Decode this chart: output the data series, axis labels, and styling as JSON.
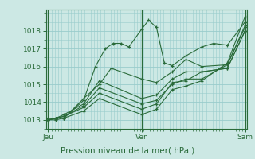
{
  "title": "Pression niveau de la mer( hPa )",
  "bg_color": "#cce8e4",
  "plot_bg_color": "#cce8e4",
  "grid_color": "#99cccc",
  "line_color": "#2a6b3a",
  "ylim": [
    1012.5,
    1019.2
  ],
  "yticks": [
    1013,
    1014,
    1015,
    1016,
    1017,
    1018
  ],
  "day_labels": [
    "Jeu",
    "Ven",
    "Sam"
  ],
  "day_positions": [
    0.0,
    0.475,
    1.0
  ],
  "series": [
    [
      0.0,
      1013.0,
      0.04,
      1013.1,
      0.08,
      1013.1,
      0.18,
      1014.1,
      0.24,
      1016.0,
      0.29,
      1017.0,
      0.33,
      1017.3,
      0.37,
      1017.3,
      0.41,
      1017.1,
      0.475,
      1018.1,
      0.51,
      1018.6,
      0.55,
      1018.2,
      0.59,
      1016.2,
      0.63,
      1016.05,
      0.7,
      1016.6,
      0.78,
      1017.1,
      0.84,
      1017.3,
      0.91,
      1017.2,
      1.0,
      1018.5
    ],
    [
      0.0,
      1013.1,
      0.04,
      1013.1,
      0.08,
      1013.1,
      0.18,
      1014.2,
      0.26,
      1015.0,
      0.32,
      1015.9,
      0.475,
      1015.3,
      0.55,
      1015.1,
      0.63,
      1015.7,
      0.7,
      1016.4,
      0.78,
      1016.0,
      0.91,
      1016.1,
      1.0,
      1018.2
    ],
    [
      0.0,
      1013.0,
      0.04,
      1013.1,
      0.08,
      1013.3,
      0.18,
      1013.9,
      0.26,
      1015.2,
      0.475,
      1014.2,
      0.55,
      1014.4,
      0.63,
      1015.3,
      0.7,
      1015.7,
      0.78,
      1015.7,
      0.91,
      1015.9,
      1.0,
      1018.0
    ],
    [
      0.0,
      1013.0,
      0.04,
      1013.1,
      0.08,
      1013.2,
      0.18,
      1013.8,
      0.26,
      1014.8,
      0.475,
      1013.9,
      0.55,
      1014.1,
      0.63,
      1015.0,
      0.7,
      1015.3,
      0.78,
      1015.3,
      0.91,
      1016.1,
      1.0,
      1018.3
    ],
    [
      0.0,
      1013.0,
      0.04,
      1013.1,
      0.08,
      1013.2,
      0.18,
      1013.7,
      0.26,
      1014.5,
      0.475,
      1013.6,
      0.55,
      1013.9,
      0.63,
      1015.1,
      0.7,
      1015.2,
      0.78,
      1015.7,
      0.91,
      1015.9,
      1.0,
      1018.0
    ],
    [
      0.0,
      1013.0,
      0.04,
      1013.0,
      0.08,
      1013.1,
      0.18,
      1013.5,
      0.26,
      1014.2,
      0.475,
      1013.3,
      0.55,
      1013.6,
      0.63,
      1014.7,
      0.7,
      1014.9,
      0.78,
      1015.2,
      0.91,
      1016.2,
      1.0,
      1018.8
    ]
  ]
}
